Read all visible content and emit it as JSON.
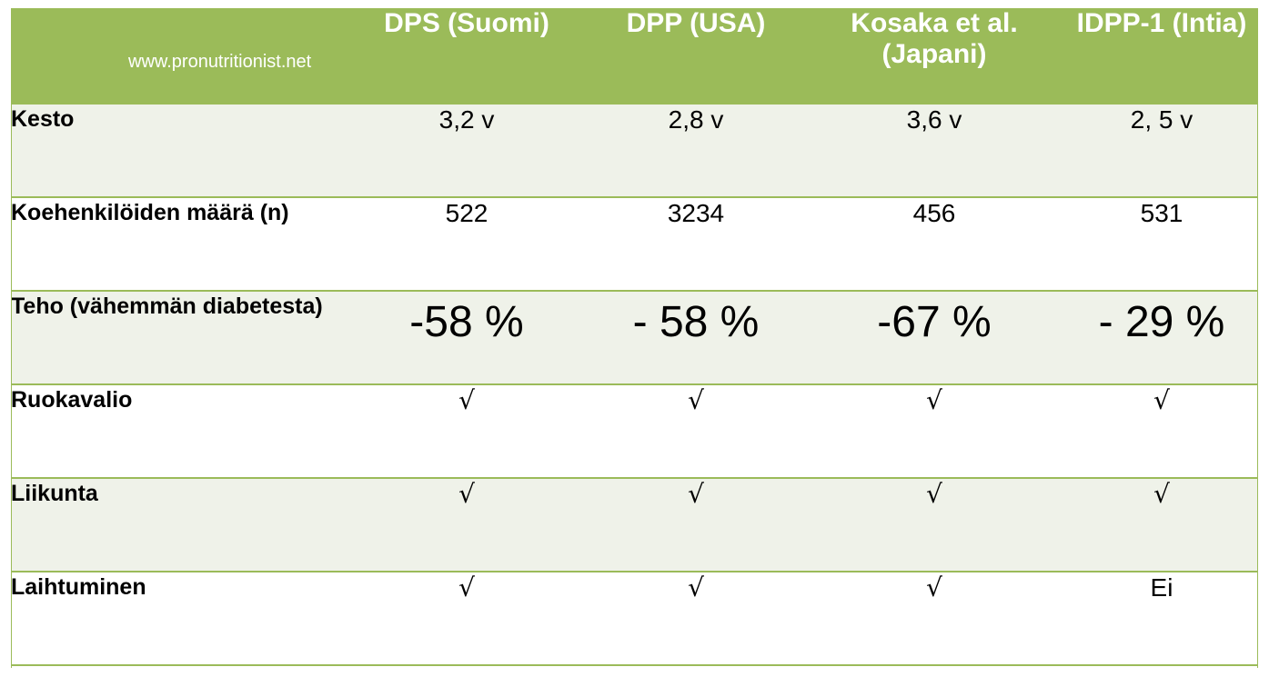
{
  "watermark": "www.pronutritionist.net",
  "columns": [
    "DPS (Suomi)",
    "DPP (USA)",
    "Kosaka et al. (Japani)",
    "IDPP-1 (Intia)"
  ],
  "rows": [
    {
      "label": "Kesto",
      "values": [
        "3,2 v",
        "2,8 v",
        "3,6 v",
        "2, 5 v"
      ]
    },
    {
      "label": "Koehenkilöiden määrä (n)",
      "values": [
        "522",
        "3234",
        "456",
        "531"
      ]
    },
    {
      "label": "Teho (vähemmän diabetesta)",
      "values": [
        "-58 %",
        "- 58 %",
        "-67 %",
        "- 29 %"
      ]
    },
    {
      "label": "Ruokavalio",
      "values": [
        "√",
        "√",
        "√",
        "√"
      ]
    },
    {
      "label": "Liikunta",
      "values": [
        "√",
        "√",
        "√",
        "√"
      ]
    },
    {
      "label": "Laihtuminen",
      "values": [
        "√",
        "√",
        "√",
        "Ei"
      ]
    }
  ],
  "colors": {
    "header_bg": "#9bbb59",
    "band_bg": "#eff2e9",
    "header_text": "#ffffff"
  }
}
